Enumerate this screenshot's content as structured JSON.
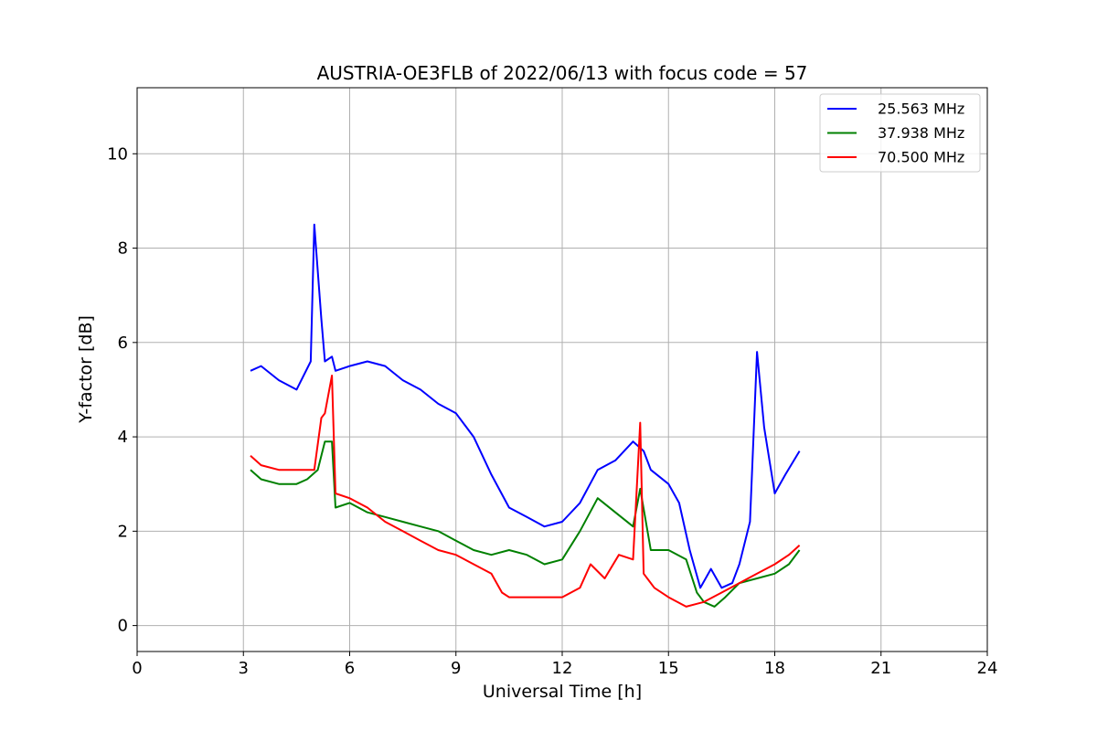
{
  "chart_data": {
    "type": "line",
    "title": "AUSTRIA-OE3FLB of 2022/06/13 with focus code = 57",
    "xlabel": "Universal Time [h]",
    "ylabel": "Y-factor [dB]",
    "xlim": [
      0,
      24
    ],
    "ylim": [
      -0.55,
      11.4
    ],
    "xticks": [
      0,
      3,
      6,
      9,
      12,
      15,
      18,
      21,
      24
    ],
    "yticks": [
      0,
      2,
      4,
      6,
      8,
      10
    ],
    "grid": true,
    "legend_position": "top-right",
    "series": [
      {
        "name": "25.563 MHz",
        "color": "#0000ff",
        "x": [
          3.2,
          3.5,
          4.0,
          4.5,
          4.9,
          5.0,
          5.2,
          5.3,
          5.5,
          5.6,
          6.0,
          6.5,
          7.0,
          7.5,
          8.0,
          8.5,
          9.0,
          9.5,
          10.0,
          10.5,
          11.0,
          11.5,
          12.0,
          12.5,
          13.0,
          13.5,
          14.0,
          14.3,
          14.5,
          15.0,
          15.3,
          15.6,
          15.9,
          16.2,
          16.5,
          16.8,
          17.0,
          17.3,
          17.5,
          17.7,
          18.0,
          18.3,
          18.7
        ],
        "y": [
          5.4,
          5.5,
          5.2,
          5.0,
          5.6,
          8.5,
          6.5,
          5.6,
          5.7,
          5.4,
          5.5,
          5.6,
          5.5,
          5.2,
          5.0,
          4.7,
          4.5,
          4.0,
          3.2,
          2.5,
          2.3,
          2.1,
          2.2,
          2.6,
          3.3,
          3.5,
          3.9,
          3.7,
          3.3,
          3.0,
          2.6,
          1.6,
          0.8,
          1.2,
          0.8,
          0.9,
          1.3,
          2.2,
          5.8,
          4.2,
          2.8,
          3.2,
          3.7
        ]
      },
      {
        "name": "37.938 MHz",
        "color": "#008000",
        "x": [
          3.2,
          3.5,
          4.0,
          4.5,
          4.8,
          5.1,
          5.3,
          5.5,
          5.6,
          6.0,
          6.5,
          7.0,
          7.5,
          8.0,
          8.5,
          9.0,
          9.5,
          10.0,
          10.5,
          11.0,
          11.5,
          12.0,
          12.5,
          13.0,
          13.5,
          14.0,
          14.2,
          14.5,
          15.0,
          15.5,
          15.8,
          16.0,
          16.3,
          16.6,
          17.0,
          17.5,
          18.0,
          18.4,
          18.7
        ],
        "y": [
          3.3,
          3.1,
          3.0,
          3.0,
          3.1,
          3.3,
          3.9,
          3.9,
          2.5,
          2.6,
          2.4,
          2.3,
          2.2,
          2.1,
          2.0,
          1.8,
          1.6,
          1.5,
          1.6,
          1.5,
          1.3,
          1.4,
          2.0,
          2.7,
          2.4,
          2.1,
          2.9,
          1.6,
          1.6,
          1.4,
          0.7,
          0.5,
          0.4,
          0.6,
          0.9,
          1.0,
          1.1,
          1.3,
          1.6
        ]
      },
      {
        "name": "70.500 MHz",
        "color": "#ff0000",
        "x": [
          3.2,
          3.5,
          4.0,
          4.5,
          5.0,
          5.2,
          5.3,
          5.5,
          5.6,
          6.0,
          6.5,
          7.0,
          7.5,
          8.0,
          8.5,
          9.0,
          9.5,
          10.0,
          10.3,
          10.5,
          11.0,
          11.5,
          12.0,
          12.5,
          12.8,
          13.2,
          13.6,
          14.0,
          14.2,
          14.3,
          14.6,
          15.0,
          15.5,
          16.0,
          16.5,
          17.0,
          17.5,
          18.0,
          18.4,
          18.7
        ],
        "y": [
          3.6,
          3.4,
          3.3,
          3.3,
          3.3,
          4.4,
          4.5,
          5.3,
          2.8,
          2.7,
          2.5,
          2.2,
          2.0,
          1.8,
          1.6,
          1.5,
          1.3,
          1.1,
          0.7,
          0.6,
          0.6,
          0.6,
          0.6,
          0.8,
          1.3,
          1.0,
          1.5,
          1.4,
          4.3,
          1.1,
          0.8,
          0.6,
          0.4,
          0.5,
          0.7,
          0.9,
          1.1,
          1.3,
          1.5,
          1.7
        ]
      }
    ]
  }
}
